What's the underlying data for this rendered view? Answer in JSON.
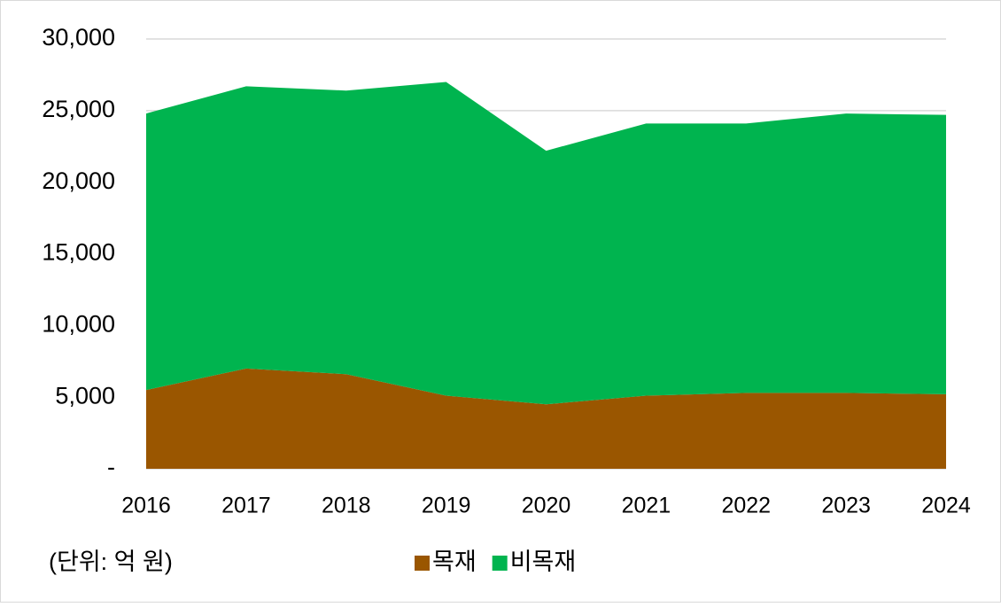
{
  "chart_data": {
    "type": "area",
    "stacked": true,
    "categories": [
      "2016",
      "2017",
      "2018",
      "2019",
      "2020",
      "2021",
      "2022",
      "2023",
      "2024"
    ],
    "series": [
      {
        "name": "목재",
        "color": "#9a5600",
        "values": [
          5500,
          7000,
          6600,
          5100,
          4500,
          5100,
          5300,
          5300,
          5200
        ]
      },
      {
        "name": "비목재",
        "color": "#00b44f",
        "values": [
          19300,
          19700,
          19800,
          21900,
          17700,
          19000,
          18800,
          19500,
          19500
        ]
      }
    ],
    "ylim": [
      0,
      30000
    ],
    "yticks": [
      {
        "value": 0,
        "label": "-"
      },
      {
        "value": 5000,
        "label": "5,000"
      },
      {
        "value": 10000,
        "label": "10,000"
      },
      {
        "value": 15000,
        "label": "15,000"
      },
      {
        "value": 20000,
        "label": "20,000"
      },
      {
        "value": 25000,
        "label": "25,000"
      },
      {
        "value": 30000,
        "label": "30,000"
      }
    ],
    "grid": true,
    "annotation": "(단위: 억 원)",
    "legend": "bottom"
  }
}
